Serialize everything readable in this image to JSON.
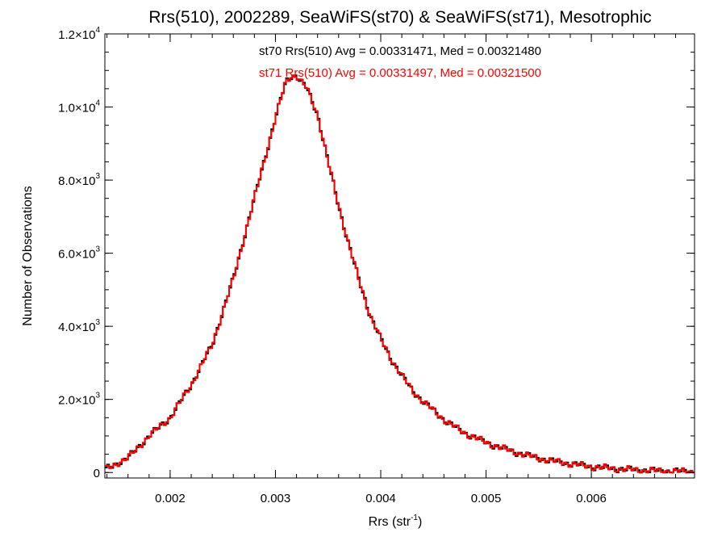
{
  "chart_data": {
    "type": "line",
    "style": "histogram-step",
    "title": "Rrs(510), 2002289, SeaWiFS(st70) & SeaWiFS(st71), Mesotrophic",
    "xlabel": "Rrs (str",
    "xlabel_sup": "-1",
    "xlabel_close": ")",
    "ylabel": "Number of Observations",
    "xlim": [
      0.00138,
      0.00698
    ],
    "ylim": [
      -150,
      12000
    ],
    "grid": false,
    "x_ticks": [
      {
        "value": 0.002,
        "label": "0.002"
      },
      {
        "value": 0.003,
        "label": "0.003"
      },
      {
        "value": 0.004,
        "label": "0.004"
      },
      {
        "value": 0.005,
        "label": "0.005"
      },
      {
        "value": 0.006,
        "label": "0.006"
      }
    ],
    "y_ticks": [
      {
        "value": 0,
        "label": "0",
        "sup": ""
      },
      {
        "value": 2000,
        "label": "2.0×10",
        "sup": "3"
      },
      {
        "value": 4000,
        "label": "4.0×10",
        "sup": "3"
      },
      {
        "value": 6000,
        "label": "6.0×10",
        "sup": "3"
      },
      {
        "value": 8000,
        "label": "8.0×10",
        "sup": "3"
      },
      {
        "value": 10000,
        "label": "1.0×10",
        "sup": "4"
      },
      {
        "value": 12000,
        "label": "1.2×10",
        "sup": "4"
      }
    ],
    "x_minor_step": 0.0002,
    "y_minor_step": 500,
    "annotations": [
      {
        "text": "st70 Rrs(510) Avg = 0.00331471, Med = 0.00321480",
        "color": "#000000"
      },
      {
        "text": "st71 Rrs(510) Avg = 0.00331497, Med = 0.00321500",
        "color": "#ff0000"
      }
    ],
    "series": [
      {
        "color": "#000000",
        "anchors": [
          [
            0.00138,
            80
          ],
          [
            0.0016,
            400
          ],
          [
            0.0018,
            1000
          ],
          [
            0.002,
            1500
          ],
          [
            0.0022,
            2400
          ],
          [
            0.0024,
            3500
          ],
          [
            0.0026,
            5300
          ],
          [
            0.0028,
            7500
          ],
          [
            0.003,
            9700
          ],
          [
            0.0031,
            10700
          ],
          [
            0.00315,
            10850
          ],
          [
            0.0032,
            10850
          ],
          [
            0.0033,
            10500
          ],
          [
            0.0034,
            9800
          ],
          [
            0.0035,
            8500
          ],
          [
            0.0036,
            7300
          ],
          [
            0.0037,
            6200
          ],
          [
            0.0038,
            5200
          ],
          [
            0.0039,
            4300
          ],
          [
            0.004,
            3650
          ],
          [
            0.0041,
            3100
          ],
          [
            0.0042,
            2650
          ],
          [
            0.0043,
            2250
          ],
          [
            0.0044,
            1950
          ],
          [
            0.0045,
            1700
          ],
          [
            0.0046,
            1450
          ],
          [
            0.0047,
            1250
          ],
          [
            0.0048,
            1080
          ],
          [
            0.0049,
            950
          ],
          [
            0.005,
            820
          ],
          [
            0.0052,
            620
          ],
          [
            0.0054,
            460
          ],
          [
            0.0056,
            330
          ],
          [
            0.0058,
            240
          ],
          [
            0.006,
            160
          ],
          [
            0.0062,
            110
          ],
          [
            0.0064,
            75
          ],
          [
            0.0066,
            50
          ],
          [
            0.0068,
            35
          ],
          [
            0.00698,
            25
          ]
        ]
      },
      {
        "color": "#ff0000",
        "anchors": [
          [
            0.00138,
            80
          ],
          [
            0.0016,
            400
          ],
          [
            0.0018,
            1000
          ],
          [
            0.002,
            1500
          ],
          [
            0.0022,
            2400
          ],
          [
            0.0024,
            3500
          ],
          [
            0.0026,
            5300
          ],
          [
            0.0028,
            7500
          ],
          [
            0.003,
            9700
          ],
          [
            0.0031,
            10700
          ],
          [
            0.00315,
            10850
          ],
          [
            0.0032,
            10850
          ],
          [
            0.0033,
            10500
          ],
          [
            0.0034,
            9800
          ],
          [
            0.0035,
            8500
          ],
          [
            0.0036,
            7300
          ],
          [
            0.0037,
            6200
          ],
          [
            0.0038,
            5200
          ],
          [
            0.0039,
            4300
          ],
          [
            0.004,
            3650
          ],
          [
            0.0041,
            3100
          ],
          [
            0.0042,
            2650
          ],
          [
            0.0043,
            2250
          ],
          [
            0.0044,
            1950
          ],
          [
            0.0045,
            1700
          ],
          [
            0.0046,
            1450
          ],
          [
            0.0047,
            1250
          ],
          [
            0.0048,
            1080
          ],
          [
            0.0049,
            950
          ],
          [
            0.005,
            820
          ],
          [
            0.0052,
            620
          ],
          [
            0.0054,
            460
          ],
          [
            0.0056,
            330
          ],
          [
            0.0058,
            240
          ],
          [
            0.006,
            160
          ],
          [
            0.0062,
            110
          ],
          [
            0.0064,
            75
          ],
          [
            0.0066,
            50
          ],
          [
            0.0068,
            35
          ],
          [
            0.00698,
            25
          ]
        ]
      }
    ]
  }
}
